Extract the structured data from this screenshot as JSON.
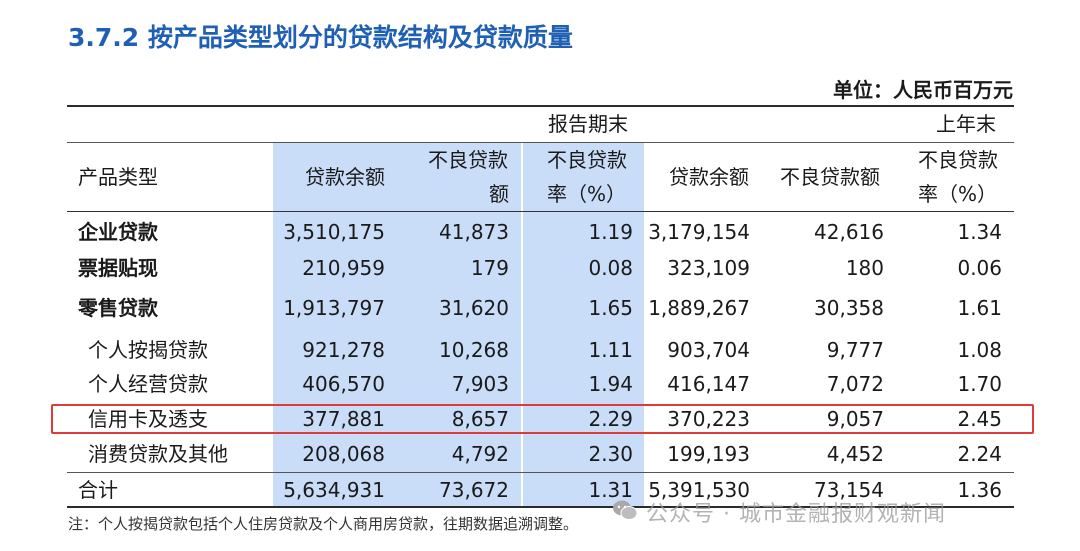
{
  "title": "3.7.2  按产品类型划分的贷款结构及贷款质量",
  "unit": "单位：人民币百万元",
  "headers": {
    "group_current": "报告期末",
    "group_prior": "上年末",
    "product_type": "产品类型",
    "cur_balance": "贷款余额",
    "cur_npl_l1": "不良贷款",
    "cur_npl_l2": "额",
    "cur_rate_l1": "不良贷款",
    "cur_rate_l2": "率（%）",
    "prior_balance": "贷款余额",
    "prior_npl": "不良贷款额",
    "prior_rate_l1": "不良贷款",
    "prior_rate_l2": "率（%）"
  },
  "rows": [
    {
      "name": "企业贷款",
      "c1": "3,510,175",
      "c2": "41,873",
      "c3": "1.19",
      "p1": "3,179,154",
      "p2": "42,616",
      "p3": "1.34"
    },
    {
      "name": "票据贴现",
      "c1": "210,959",
      "c2": "179",
      "c3": "0.08",
      "p1": "323,109",
      "p2": "180",
      "p3": "0.06"
    },
    {
      "name": "零售贷款",
      "c1": "1,913,797",
      "c2": "31,620",
      "c3": "1.65",
      "p1": "1,889,267",
      "p2": "30,358",
      "p3": "1.61"
    },
    {
      "name": "个人按揭贷款",
      "c1": "921,278",
      "c2": "10,268",
      "c3": "1.11",
      "p1": "903,704",
      "p2": "9,777",
      "p3": "1.08"
    },
    {
      "name": "个人经营贷款",
      "c1": "406,570",
      "c2": "7,903",
      "c3": "1.94",
      "p1": "416,147",
      "p2": "7,072",
      "p3": "1.70"
    },
    {
      "name": "信用卡及透支",
      "c1": "377,881",
      "c2": "8,657",
      "c3": "2.29",
      "p1": "370,223",
      "p2": "9,057",
      "p3": "2.45"
    },
    {
      "name": "消费贷款及其他",
      "c1": "208,068",
      "c2": "4,792",
      "c3": "2.30",
      "p1": "199,193",
      "p2": "4,452",
      "p3": "2.24"
    },
    {
      "name": "合计",
      "c1": "5,634,931",
      "c2": "73,672",
      "c3": "1.31",
      "p1": "5,391,530",
      "p2": "73,154",
      "p3": "1.36"
    }
  ],
  "note": "注：个人按揭贷款包括个人住房贷款及个人商用房贷款，往期数据追溯调整。",
  "watermark": "公众号 · 城市金融报财观新闻",
  "colors": {
    "title": "#1f5fb4",
    "highlight_col": "#c9dcf8",
    "red_box": "#e03a3a"
  }
}
